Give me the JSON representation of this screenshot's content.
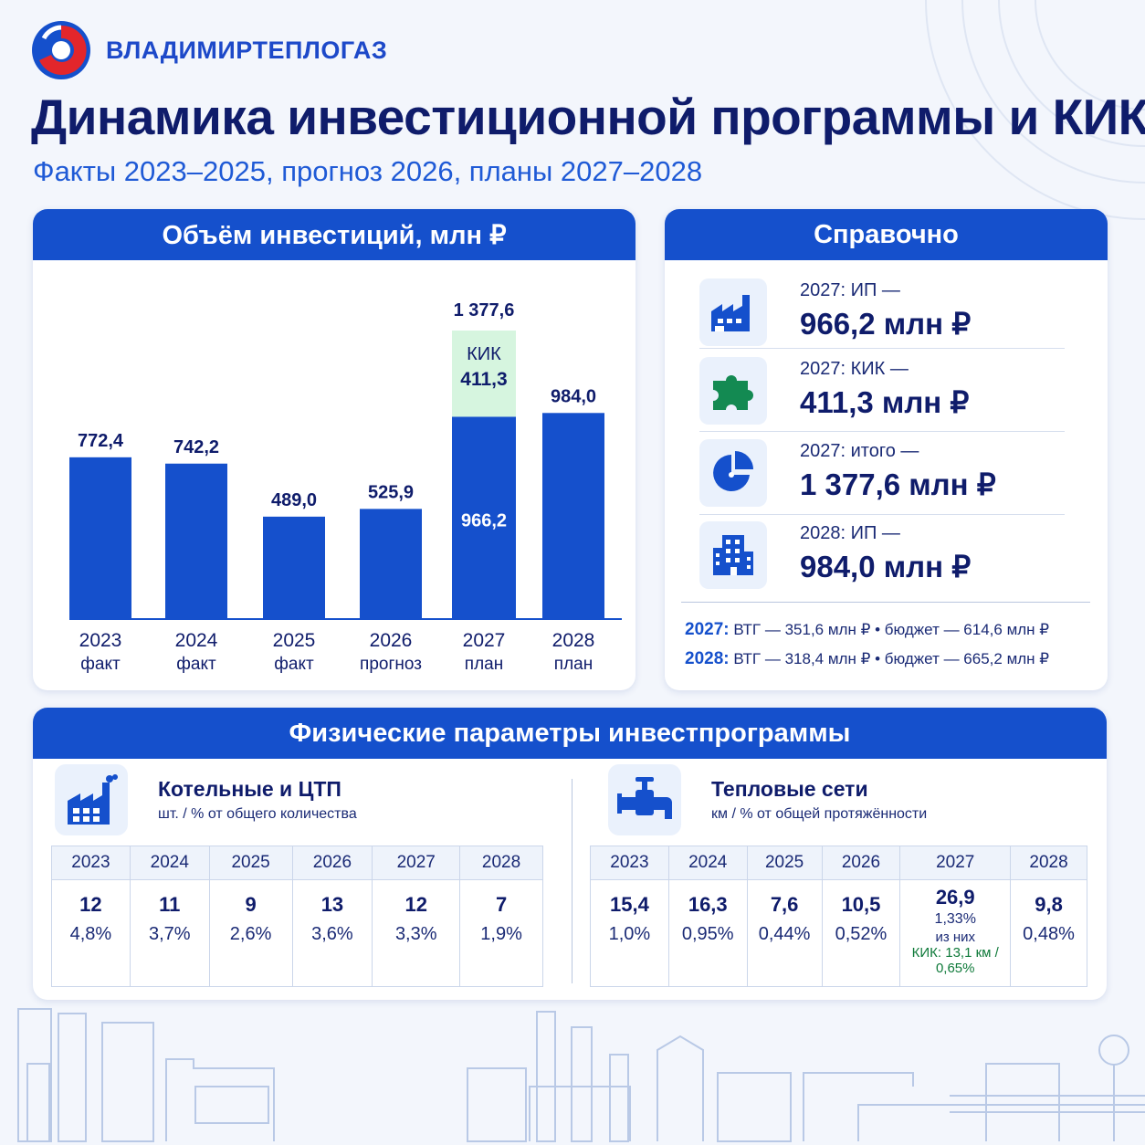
{
  "brand": {
    "name": "ВЛАДИМИРТЕПЛОГАЗ"
  },
  "header": {
    "title": "Динамика инвестиционной программы и КИК",
    "subtitle": "Факты 2023–2025, прогноз 2026, планы 2027–2028"
  },
  "chart_data": {
    "type": "bar",
    "title": "Объём инвестиций, млн ₽",
    "categories": [
      "2023",
      "2024",
      "2025",
      "2026",
      "2027",
      "2028"
    ],
    "category_notes": [
      "факт",
      "факт",
      "факт",
      "прогноз",
      "план",
      "план"
    ],
    "series": [
      {
        "name": "",
        "values": [
          772.4,
          742.2,
          489.0,
          525.9,
          966.2,
          984.0
        ],
        "labels": [
          "772,4",
          "742,2",
          "489,0",
          "525,9",
          "966,2",
          "984,0"
        ],
        "color": "#1550cc"
      },
      {
        "name": "КИК",
        "values": [
          0,
          0,
          0,
          0,
          411.3,
          0
        ],
        "labels": [
          "",
          "",
          "",
          "",
          "411,3",
          ""
        ],
        "color": "#d6f5df"
      }
    ],
    "stacked": true,
    "total_2027_label": "1 377,6",
    "ylim": [
      0,
      1377.6
    ]
  },
  "reference": {
    "title": "Справочно",
    "items": [
      {
        "label": "2027: ИП —",
        "value": "966,2 млн ₽",
        "icon": "factory-icon"
      },
      {
        "label": "2027: КИК —",
        "value": "411,3 млн ₽",
        "icon": "puzzle-icon"
      },
      {
        "label": "2027: итого —",
        "value": "1 377,6 млн ₽",
        "icon": "pie-chart-icon"
      },
      {
        "label": "2028: ИП —",
        "value": "984,0 млн ₽",
        "icon": "building-icon"
      }
    ],
    "notes": [
      {
        "year": "2027:",
        "text": "ВТГ — 351,6 млн ₽ • бюджет — 614,6 млн ₽"
      },
      {
        "year": "2028:",
        "text": "ВТГ — 318,4 млн ₽ • бюджет — 665,2 млн ₽"
      }
    ]
  },
  "physical": {
    "title": "Физические параметры инвестпрограммы",
    "boilers": {
      "title": "Котельные и ЦТП",
      "subtitle": "шт. / % от общего количества",
      "years": [
        "2023",
        "2024",
        "2025",
        "2026",
        "2027",
        "2028"
      ],
      "counts": [
        "12",
        "11",
        "9",
        "13",
        "12",
        "7"
      ],
      "shares": [
        "4,8%",
        "3,7%",
        "2,6%",
        "3,6%",
        "3,3%",
        "1,9%"
      ]
    },
    "networks": {
      "title": "Тепловые сети",
      "subtitle": "км / % от общей протяжённости",
      "years": [
        "2023",
        "2024",
        "2025",
        "2026",
        "2027",
        "2028"
      ],
      "lengths": [
        "15,4",
        "16,3",
        "7,6",
        "10,5",
        "26,9",
        "9,8"
      ],
      "shares": [
        "1,0%",
        "0,95%",
        "0,44%",
        "0,52%",
        "1,33%",
        "0,48%"
      ],
      "note_2027_line1": "из них",
      "note_2027_line2": "КИК: 13,1 км /",
      "note_2027_line3": "0,65%"
    }
  },
  "colors": {
    "primary": "#1550cc",
    "title": "#0f1c6b",
    "accent_green": "#d6f5df",
    "logo_red": "#e3262b"
  }
}
